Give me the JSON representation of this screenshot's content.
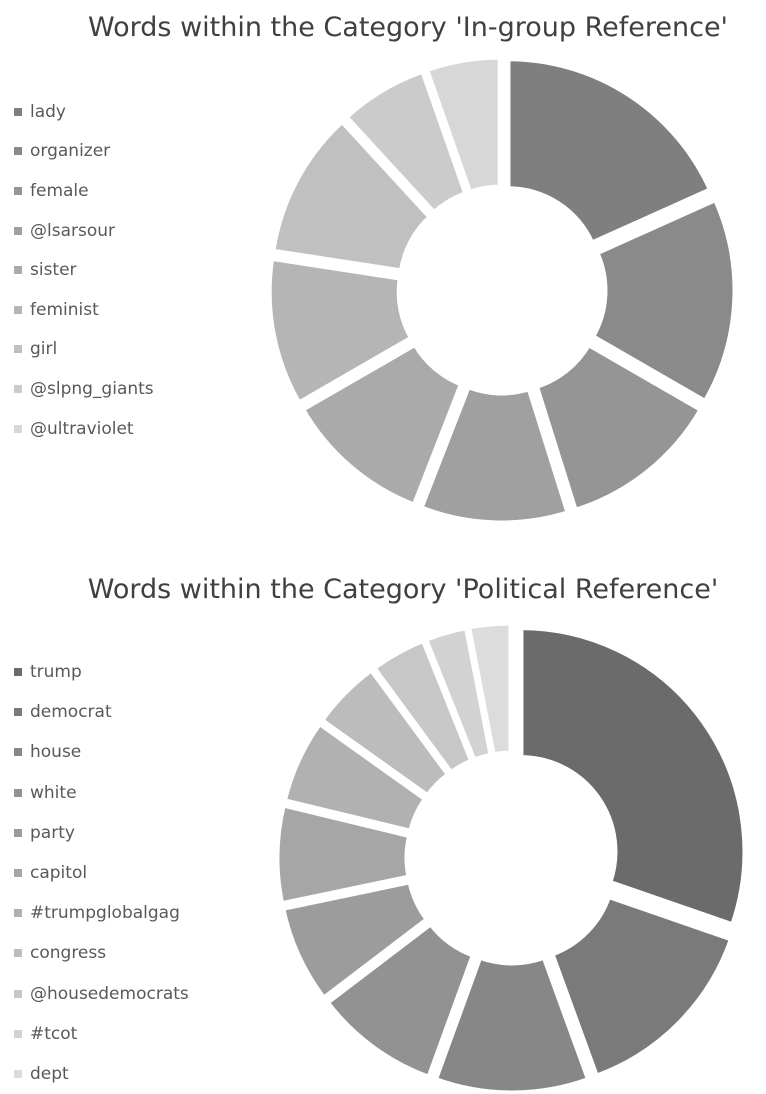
{
  "chart_data": [
    {
      "type": "pie",
      "subtype": "donut-exploded",
      "title": "Words within the Category 'In-group Reference'",
      "legend_position": "left",
      "categories": [
        "lady",
        "organizer",
        "female",
        "@lsarsour",
        "sister",
        "feminist",
        "girl",
        "@slpng_giants",
        "@ultraviolet"
      ],
      "values": [
        17,
        14,
        11,
        10,
        10,
        10,
        10,
        6,
        5
      ],
      "colors": [
        "#7f7f7f",
        "#8a8a8a",
        "#959595",
        "#a0a0a0",
        "#aaaaaa",
        "#b5b5b5",
        "#c0c0c0",
        "#cbcbcb",
        "#d7d7d7"
      ]
    },
    {
      "type": "pie",
      "subtype": "donut-exploded",
      "title": "Words within the Category 'Political Reference'",
      "legend_position": "left",
      "categories": [
        "trump",
        "democrat",
        "house",
        "white",
        "party",
        "capitol",
        "#trumpglobalgag",
        "congress",
        "@housedemocrats",
        "#tcot",
        "dept"
      ],
      "values": [
        30,
        14,
        11,
        9,
        7,
        7,
        6,
        5,
        4,
        3,
        3
      ],
      "colors": [
        "#6b6b6b",
        "#7a7a7a",
        "#878787",
        "#929292",
        "#9c9c9c",
        "#a6a6a6",
        "#b1b1b1",
        "#bcbcbc",
        "#c7c7c7",
        "#d2d2d2",
        "#dcdcdc"
      ]
    }
  ]
}
